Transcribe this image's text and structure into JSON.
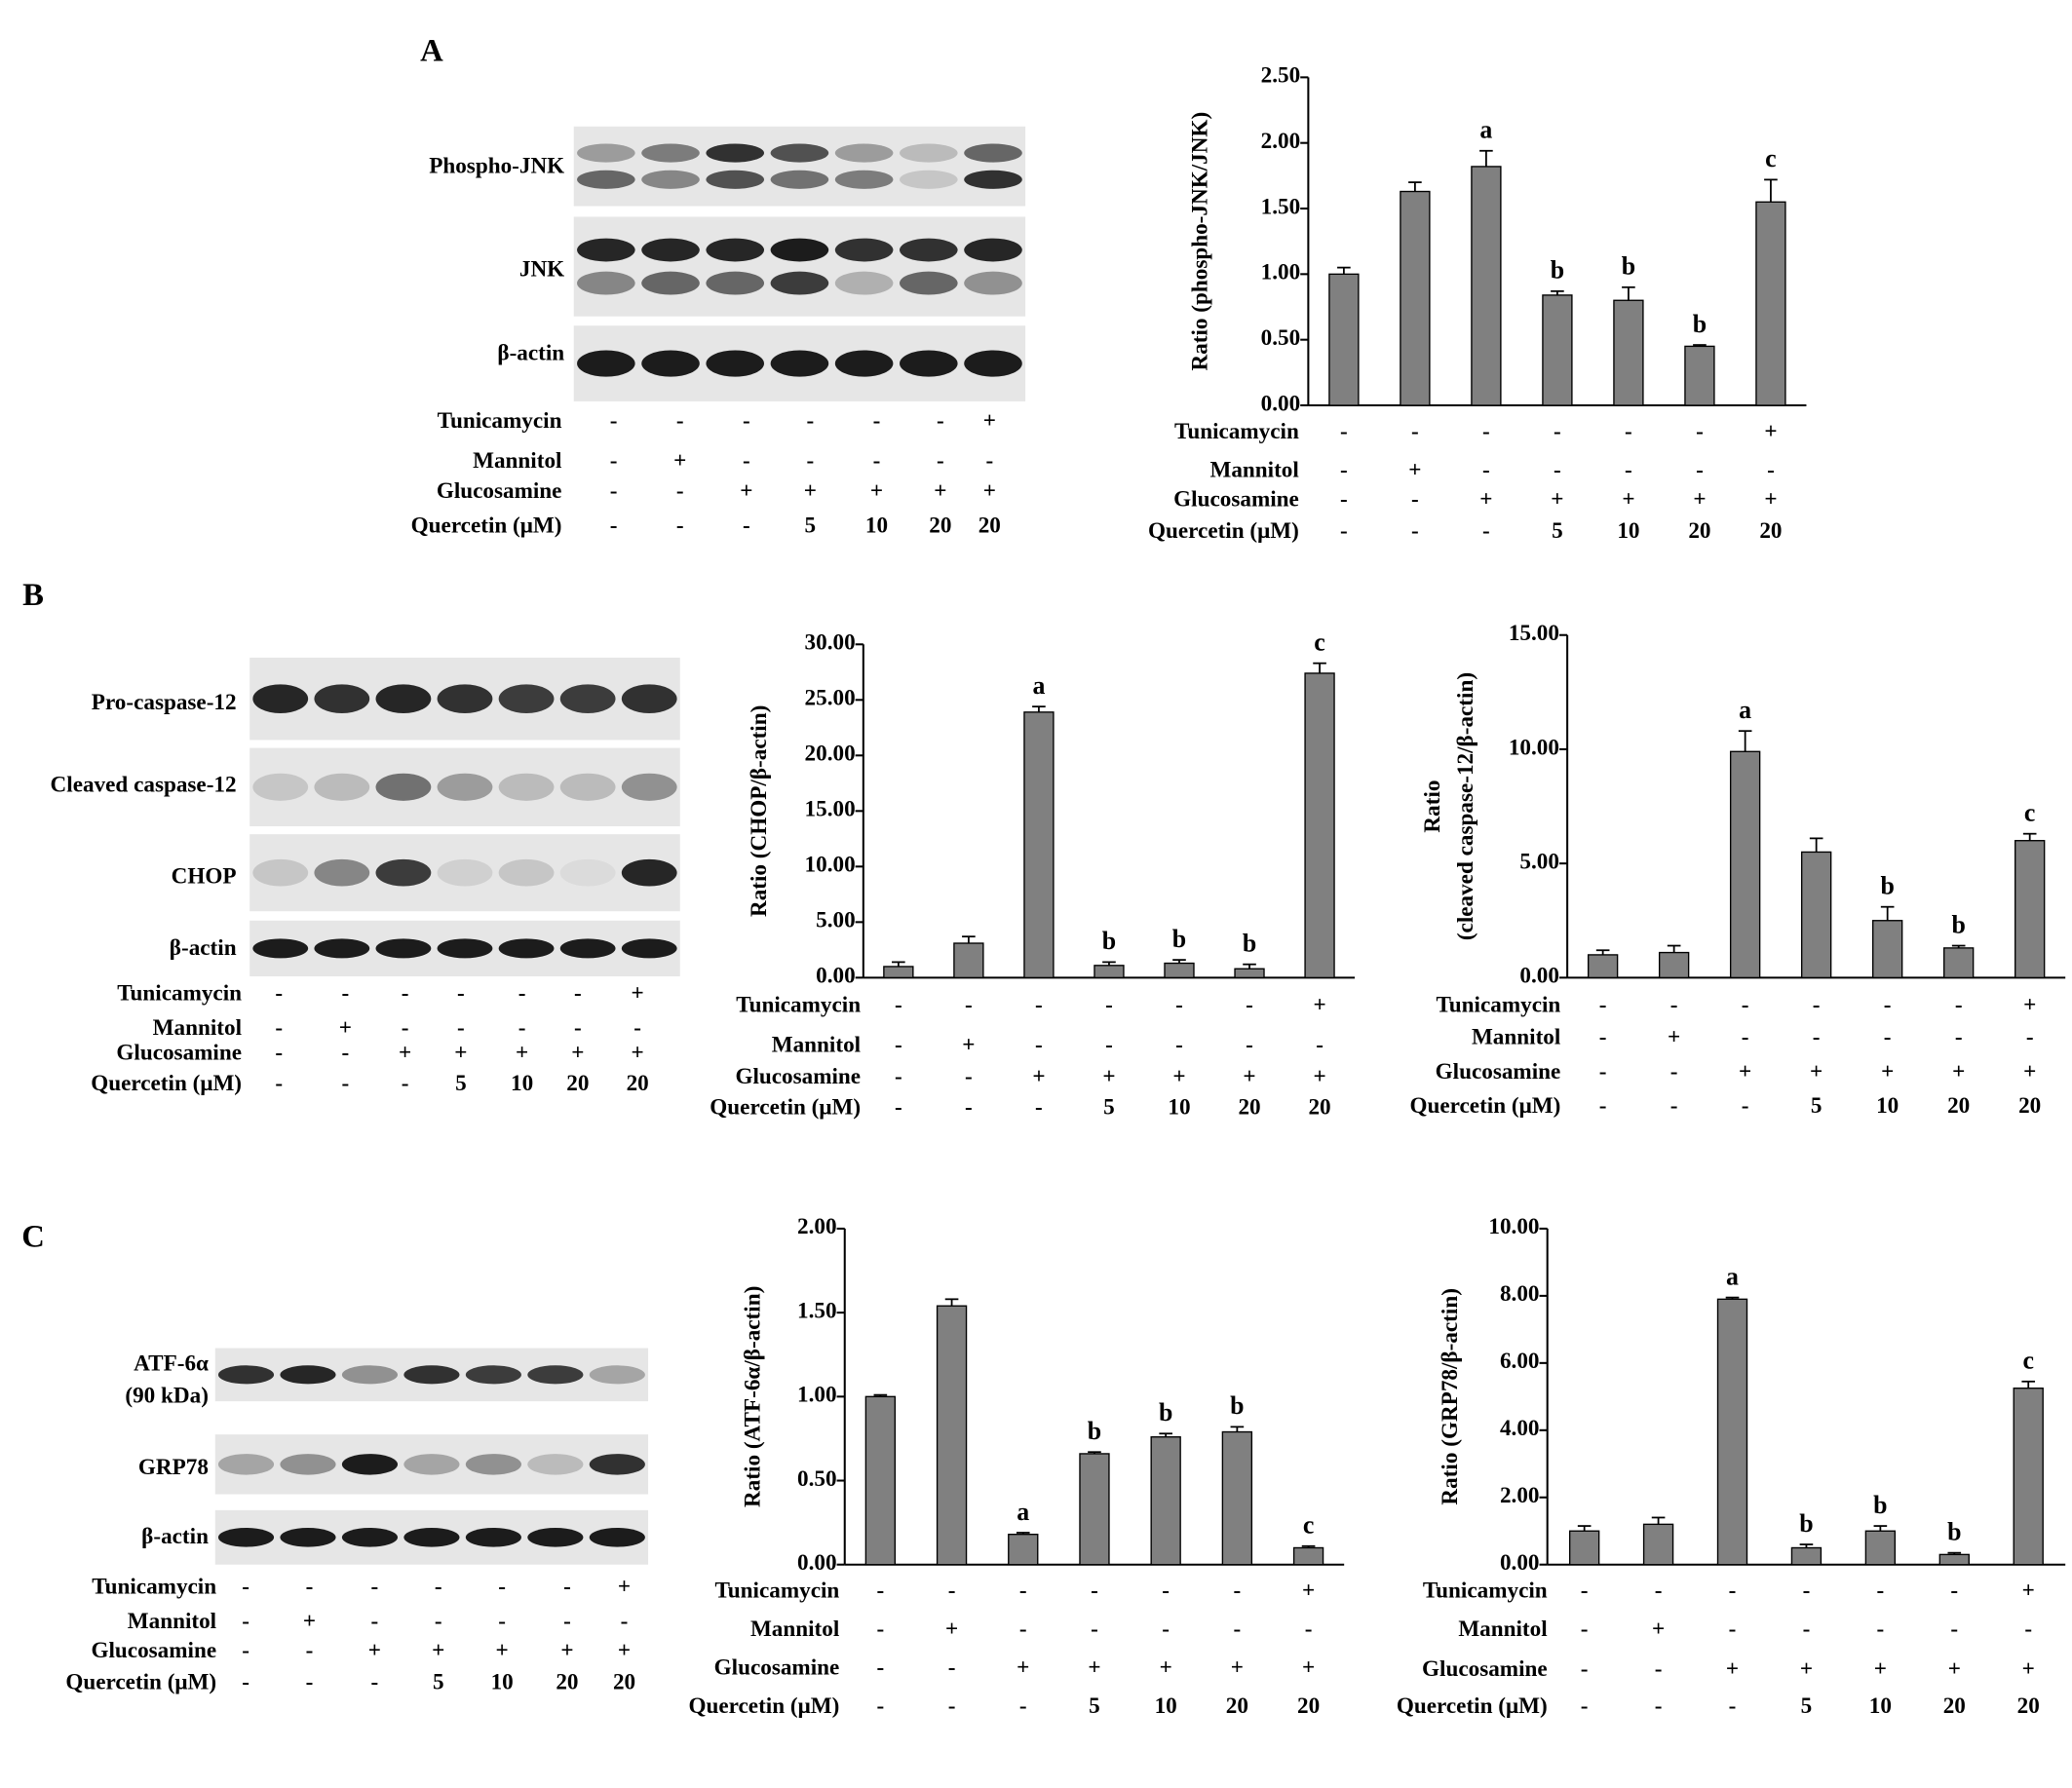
{
  "panel_labels": [
    "A",
    "B",
    "C"
  ],
  "blots": [
    {
      "bands": [
        "Phospho-JNK",
        "JNK",
        "β-actin"
      ],
      "conditions": [
        {
          "name": "Tunicamycin",
          "values": [
            "-",
            "-",
            "-",
            "-",
            "-",
            "-",
            "+"
          ]
        },
        {
          "name": "Mannitol",
          "values": [
            "-",
            "+",
            "-",
            "-",
            "-",
            "-",
            "-"
          ]
        },
        {
          "name": "Glucosamine",
          "values": [
            "-",
            "-",
            "+",
            "+",
            "+",
            "+",
            "+"
          ]
        },
        {
          "name": "Quercetin (μM)",
          "values": [
            "-",
            "-",
            "-",
            "5",
            "10",
            "20",
            "20"
          ]
        }
      ]
    },
    {
      "bands": [
        "Pro-caspase-12",
        "Cleaved caspase-12",
        "CHOP",
        "β-actin"
      ],
      "conditions": [
        {
          "name": "Tunicamycin",
          "values": [
            "-",
            "-",
            "-",
            "-",
            "-",
            "-",
            "+"
          ]
        },
        {
          "name": "Mannitol",
          "values": [
            "-",
            "+",
            "-",
            "-",
            "-",
            "-",
            "-"
          ]
        },
        {
          "name": "Glucosamine",
          "values": [
            "-",
            "-",
            "+",
            "+",
            "+",
            "+",
            "+"
          ]
        },
        {
          "name": "Quercetin (μM)",
          "values": [
            "-",
            "-",
            "-",
            "5",
            "10",
            "20",
            "20"
          ]
        }
      ]
    },
    {
      "bands": [
        [
          "ATF-6α",
          "(90 kDa)"
        ],
        "GRP78",
        "β-actin"
      ],
      "conditions": [
        {
          "name": "Tunicamycin",
          "values": [
            "-",
            "-",
            "-",
            "-",
            "-",
            "-",
            "+"
          ]
        },
        {
          "name": "Mannitol",
          "values": [
            "-",
            "+",
            "-",
            "-",
            "-",
            "-",
            "-"
          ]
        },
        {
          "name": "Glucosamine",
          "values": [
            "-",
            "-",
            "+",
            "+",
            "+",
            "+",
            "+"
          ]
        },
        {
          "name": "Quercetin (μM)",
          "values": [
            "-",
            "-",
            "-",
            "5",
            "10",
            "20",
            "20"
          ]
        }
      ]
    }
  ],
  "chart_data": [
    {
      "type": "bar",
      "ylabel": [
        "Ratio (phospho-JNK/JNK)"
      ],
      "color": "#808080",
      "values": [
        1.0,
        1.63,
        1.82,
        0.84,
        0.8,
        0.45,
        1.55
      ],
      "errors": [
        0.05,
        0.07,
        0.12,
        0.03,
        0.1,
        0.01,
        0.17
      ],
      "annotations": [
        null,
        null,
        "a",
        "b",
        "b",
        "b",
        "c"
      ],
      "ylim": [
        0,
        2.5
      ],
      "yticks": [
        {
          "value": 0,
          "label": "0.00"
        },
        {
          "value": 0.5,
          "label": "0.50"
        },
        {
          "value": 1,
          "label": "1.00"
        },
        {
          "value": 1.5,
          "label": "1.50"
        },
        {
          "value": 2,
          "label": "2.00"
        },
        {
          "value": 2.5,
          "label": "2.50"
        }
      ],
      "conditions": [
        {
          "name": "Tunicamycin",
          "values": [
            "-",
            "-",
            "-",
            "-",
            "-",
            "-",
            "+"
          ]
        },
        {
          "name": "Mannitol",
          "values": [
            "-",
            "+",
            "-",
            "-",
            "-",
            "-",
            "-"
          ]
        },
        {
          "name": "Glucosamine",
          "values": [
            "-",
            "-",
            "+",
            "+",
            "+",
            "+",
            "+"
          ]
        },
        {
          "name": "Quercetin (μM)",
          "values": [
            "-",
            "-",
            "-",
            "5",
            "10",
            "20",
            "20"
          ]
        }
      ]
    },
    {
      "type": "bar",
      "ylabel": [
        "Ratio (CHOP/β-actin)"
      ],
      "color": "#808080",
      "values": [
        1.0,
        3.1,
        23.9,
        1.1,
        1.3,
        0.8,
        27.4
      ],
      "errors": [
        0.4,
        0.6,
        0.5,
        0.3,
        0.3,
        0.4,
        0.9
      ],
      "annotations": [
        null,
        null,
        "a",
        "b",
        "b",
        "b",
        "c"
      ],
      "ylim": [
        0,
        30
      ],
      "yticks": [
        {
          "value": 0,
          "label": "0.00"
        },
        {
          "value": 5,
          "label": "5.00"
        },
        {
          "value": 10,
          "label": "10.00"
        },
        {
          "value": 15,
          "label": "15.00"
        },
        {
          "value": 20,
          "label": "20.00"
        },
        {
          "value": 25,
          "label": "25.00"
        },
        {
          "value": 30,
          "label": "30.00"
        }
      ],
      "conditions": [
        {
          "name": "Tunicamycin",
          "values": [
            "-",
            "-",
            "-",
            "-",
            "-",
            "-",
            "+"
          ]
        },
        {
          "name": "Mannitol",
          "values": [
            "-",
            "+",
            "-",
            "-",
            "-",
            "-",
            "-"
          ]
        },
        {
          "name": "Glucosamine",
          "values": [
            "-",
            "-",
            "+",
            "+",
            "+",
            "+",
            "+"
          ]
        },
        {
          "name": "Quercetin (μM)",
          "values": [
            "-",
            "-",
            "-",
            "5",
            "10",
            "20",
            "20"
          ]
        }
      ]
    },
    {
      "type": "bar",
      "ylabel": [
        "Ratio",
        "(cleaved caspase-12/β-actin)"
      ],
      "color": "#808080",
      "values": [
        1.0,
        1.1,
        9.9,
        5.5,
        2.5,
        1.3,
        6.0
      ],
      "errors": [
        0.2,
        0.3,
        0.9,
        0.6,
        0.6,
        0.1,
        0.3
      ],
      "annotations": [
        null,
        null,
        "a",
        null,
        "b",
        "b",
        "c"
      ],
      "ylim": [
        0,
        15
      ],
      "yticks": [
        {
          "value": 0,
          "label": "0.00"
        },
        {
          "value": 5,
          "label": "5.00"
        },
        {
          "value": 10,
          "label": "10.00"
        },
        {
          "value": 15,
          "label": "15.00"
        }
      ],
      "conditions": [
        {
          "name": "Tunicamycin",
          "values": [
            "-",
            "-",
            "-",
            "-",
            "-",
            "-",
            "+"
          ]
        },
        {
          "name": "Mannitol",
          "values": [
            "-",
            "+",
            "-",
            "-",
            "-",
            "-",
            "-"
          ]
        },
        {
          "name": "Glucosamine",
          "values": [
            "-",
            "-",
            "+",
            "+",
            "+",
            "+",
            "+"
          ]
        },
        {
          "name": "Quercetin (μM)",
          "values": [
            "-",
            "-",
            "-",
            "5",
            "10",
            "20",
            "20"
          ]
        }
      ]
    },
    {
      "type": "bar",
      "ylabel": [
        "Ratio (ATF-6α/β-actin)"
      ],
      "color": "#808080",
      "values": [
        1.0,
        1.54,
        0.18,
        0.66,
        0.76,
        0.79,
        0.1
      ],
      "errors": [
        0.01,
        0.04,
        0.01,
        0.01,
        0.02,
        0.03,
        0.01
      ],
      "annotations": [
        null,
        null,
        "a",
        "b",
        "b",
        "b",
        "c"
      ],
      "ylim": [
        0,
        2
      ],
      "yticks": [
        {
          "value": 0,
          "label": "0.00"
        },
        {
          "value": 0.5,
          "label": "0.50"
        },
        {
          "value": 1,
          "label": "1.00"
        },
        {
          "value": 1.5,
          "label": "1.50"
        },
        {
          "value": 2,
          "label": "2.00"
        }
      ],
      "conditions": [
        {
          "name": "Tunicamycin",
          "values": [
            "-",
            "-",
            "-",
            "-",
            "-",
            "-",
            "+"
          ]
        },
        {
          "name": "Mannitol",
          "values": [
            "-",
            "+",
            "-",
            "-",
            "-",
            "-",
            "-"
          ]
        },
        {
          "name": "Glucosamine",
          "values": [
            "-",
            "-",
            "+",
            "+",
            "+",
            "+",
            "+"
          ]
        },
        {
          "name": "Quercetin (μM)",
          "values": [
            "-",
            "-",
            "-",
            "5",
            "10",
            "20",
            "20"
          ]
        }
      ]
    },
    {
      "type": "bar",
      "ylabel": [
        "Ratio (GRP78/β-actin)"
      ],
      "color": "#808080",
      "values": [
        1.0,
        1.2,
        7.9,
        0.5,
        1.0,
        0.3,
        5.25
      ],
      "errors": [
        0.15,
        0.2,
        0.05,
        0.1,
        0.15,
        0.05,
        0.2
      ],
      "annotations": [
        null,
        null,
        "a",
        "b",
        "b",
        "b",
        "c"
      ],
      "ylim": [
        0,
        10
      ],
      "yticks": [
        {
          "value": 0,
          "label": "0.00"
        },
        {
          "value": 2,
          "label": "2.00"
        },
        {
          "value": 4,
          "label": "4.00"
        },
        {
          "value": 6,
          "label": "6.00"
        },
        {
          "value": 8,
          "label": "8.00"
        },
        {
          "value": 10,
          "label": "10.00"
        }
      ],
      "conditions": [
        {
          "name": "Tunicamycin",
          "values": [
            "-",
            "-",
            "-",
            "-",
            "-",
            "-",
            "+"
          ]
        },
        {
          "name": "Mannitol",
          "values": [
            "-",
            "+",
            "-",
            "-",
            "-",
            "-",
            "-"
          ]
        },
        {
          "name": "Glucosamine",
          "values": [
            "-",
            "-",
            "+",
            "+",
            "+",
            "+",
            "+"
          ]
        },
        {
          "name": "Quercetin (μM)",
          "values": [
            "-",
            "-",
            "-",
            "5",
            "10",
            "20",
            "20"
          ]
        }
      ]
    }
  ]
}
